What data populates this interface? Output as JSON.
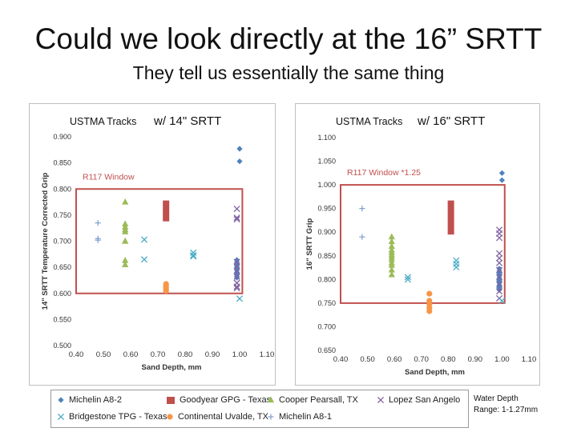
{
  "slide": {
    "title": "Could we look directly at the 16” SRTT",
    "subtitle": "They tell us essentially the same thing",
    "note_line1": "Water Depth",
    "note_line2": "Range: 1-1.27mm"
  },
  "chart_data": [
    {
      "type": "scatter",
      "title_prefix": "USTMA Tracks",
      "title": "w/ 14\" SRTT",
      "xlabel": "Sand Depth, mm",
      "ylabel": "14\" SRTT Temperature Corrected Grip",
      "xlim": [
        0.4,
        1.1
      ],
      "ylim": [
        0.5,
        0.9
      ],
      "xticks": [
        "0.40",
        "0.50",
        "0.60",
        "0.70",
        "0.80",
        "0.90",
        "1.00",
        "1.10"
      ],
      "yticks": [
        "0.500",
        "0.550",
        "0.600",
        "0.650",
        "0.700",
        "0.750",
        "0.800",
        "0.850",
        "0.900"
      ],
      "window": {
        "label": "R117 Window",
        "x": [
          0.4,
          1.01
        ],
        "y": [
          0.6,
          0.8
        ],
        "color": "#c0504d"
      },
      "series": [
        {
          "name": "Michelin A8-2",
          "marker": "diamond",
          "color": "#4f81bd",
          "x": [
            1.0,
            1.0,
            0.99,
            0.99,
            0.99,
            0.99,
            0.99,
            0.99,
            0.99,
            0.99,
            0.99,
            0.99,
            0.99
          ],
          "y": [
            0.877,
            0.853,
            0.664,
            0.66,
            0.657,
            0.653,
            0.65,
            0.647,
            0.644,
            0.64,
            0.637,
            0.633,
            0.63
          ]
        },
        {
          "name": "Goodyear GPG - Texas",
          "marker": "bar",
          "color": "#c0504d",
          "x": [
            0.73
          ],
          "y0": [
            0.738
          ],
          "y1": [
            0.778
          ]
        },
        {
          "name": "Cooper Pearsall, TX",
          "marker": "triangle",
          "color": "#9bbb59",
          "x": [
            0.58,
            0.58,
            0.58,
            0.58,
            0.58,
            0.58,
            0.58,
            0.58,
            0.58
          ],
          "y": [
            0.775,
            0.733,
            0.727,
            0.722,
            0.718,
            0.7,
            0.7,
            0.663,
            0.655
          ]
        },
        {
          "name": "Lopez San Angelo",
          "marker": "x",
          "color": "#8064a2",
          "x": [
            0.99,
            0.99,
            0.99,
            0.99,
            0.99,
            0.99,
            0.99,
            0.99,
            0.99,
            0.99,
            0.99
          ],
          "y": [
            0.762,
            0.745,
            0.742,
            0.66,
            0.652,
            0.643,
            0.632,
            0.62,
            0.613,
            0.61,
            0.62
          ]
        },
        {
          "name": "Bridgestone TPG - Texas",
          "marker": "x",
          "color": "#4bacc6",
          "x": [
            0.65,
            0.65,
            0.83,
            0.83,
            0.83,
            1.0
          ],
          "y": [
            0.703,
            0.665,
            0.678,
            0.673,
            0.671,
            0.59
          ]
        },
        {
          "name": "Continental Uvalde, TX",
          "marker": "circle",
          "color": "#f79646",
          "x": [
            0.73,
            0.73,
            0.73,
            0.73,
            0.73
          ],
          "y": [
            0.618,
            0.614,
            0.611,
            0.608,
            0.605
          ]
        },
        {
          "name": "Michelin A8-1",
          "marker": "plus",
          "color": "#7f9fcf",
          "x": [
            0.48,
            0.48,
            0.48
          ],
          "y": [
            0.735,
            0.705,
            0.702
          ]
        }
      ]
    },
    {
      "type": "scatter",
      "title_prefix": "USTMA Tracks",
      "title": "w/ 16\" SRTT",
      "xlabel": "Sand Depth, mm",
      "ylabel": "16\" SRTT Grip",
      "xlim": [
        0.4,
        1.1
      ],
      "ylim": [
        0.65,
        1.1
      ],
      "xticks": [
        "0.40",
        "0.50",
        "0.60",
        "0.70",
        "0.80",
        "0.90",
        "1.00",
        "1.10"
      ],
      "yticks": [
        "0.650",
        "0.700",
        "0.750",
        "0.800",
        "0.850",
        "0.900",
        "0.950",
        "1.000",
        "1.050",
        "1.100"
      ],
      "window": {
        "label": "R117 Window *1.25",
        "x": [
          0.4,
          1.01
        ],
        "y": [
          0.75,
          1.0
        ],
        "color": "#c0504d"
      },
      "series": [
        {
          "name": "Michelin A8-2",
          "marker": "diamond",
          "color": "#4f81bd",
          "x": [
            1.0,
            1.0,
            0.99,
            0.99,
            0.99,
            0.99,
            0.99,
            0.99,
            0.99,
            0.99,
            0.99,
            0.99
          ],
          "y": [
            1.025,
            1.01,
            0.823,
            0.818,
            0.813,
            0.808,
            0.803,
            0.798,
            0.793,
            0.788,
            0.783,
            0.778
          ]
        },
        {
          "name": "Goodyear GPG - Texas",
          "marker": "bar",
          "color": "#c0504d",
          "x": [
            0.81
          ],
          "y0": [
            0.895
          ],
          "y1": [
            0.967
          ]
        },
        {
          "name": "Cooper Pearsall, TX",
          "marker": "triangle",
          "color": "#9bbb59",
          "x": [
            0.59,
            0.59,
            0.59,
            0.59,
            0.59,
            0.59,
            0.59,
            0.59,
            0.59,
            0.59,
            0.59,
            0.59
          ],
          "y": [
            0.89,
            0.88,
            0.87,
            0.862,
            0.857,
            0.852,
            0.847,
            0.842,
            0.835,
            0.83,
            0.82,
            0.81
          ]
        },
        {
          "name": "Lopez San Angelo",
          "marker": "x",
          "color": "#8064a2",
          "x": [
            0.99,
            0.99,
            0.99,
            0.99,
            0.99,
            0.99,
            0.99,
            0.99,
            0.99,
            0.99,
            0.99
          ],
          "y": [
            0.905,
            0.897,
            0.888,
            0.855,
            0.845,
            0.835,
            0.82,
            0.805,
            0.79,
            0.775,
            0.76
          ]
        },
        {
          "name": "Bridgestone TPG - Texas",
          "marker": "x",
          "color": "#4bacc6",
          "x": [
            0.65,
            0.65,
            0.83,
            0.83,
            0.83,
            1.0
          ],
          "y": [
            0.805,
            0.8,
            0.84,
            0.833,
            0.826,
            0.755
          ]
        },
        {
          "name": "Continental Uvalde, TX",
          "marker": "circle",
          "color": "#f79646",
          "x": [
            0.73,
            0.73,
            0.73,
            0.73,
            0.73
          ],
          "y": [
            0.77,
            0.755,
            0.748,
            0.74,
            0.733
          ]
        },
        {
          "name": "Michelin A8-1",
          "marker": "plus",
          "color": "#7f9fcf",
          "x": [
            0.48,
            0.48
          ],
          "y": [
            0.95,
            0.89
          ]
        }
      ]
    }
  ],
  "legend": [
    {
      "name": "Michelin A8-2",
      "marker": "diamond",
      "color": "#4f81bd"
    },
    {
      "name": "Goodyear GPG - Texas",
      "marker": "bar",
      "color": "#c0504d"
    },
    {
      "name": "Cooper Pearsall, TX",
      "marker": "triangle",
      "color": "#9bbb59"
    },
    {
      "name": "Lopez San Angelo",
      "marker": "x",
      "color": "#8064a2"
    },
    {
      "name": "Bridgestone TPG - Texas",
      "marker": "x",
      "color": "#4bacc6"
    },
    {
      "name": "Continental Uvalde, TX",
      "marker": "circle",
      "color": "#f79646"
    },
    {
      "name": "Michelin A8-1",
      "marker": "plus",
      "color": "#7f9fcf"
    }
  ]
}
